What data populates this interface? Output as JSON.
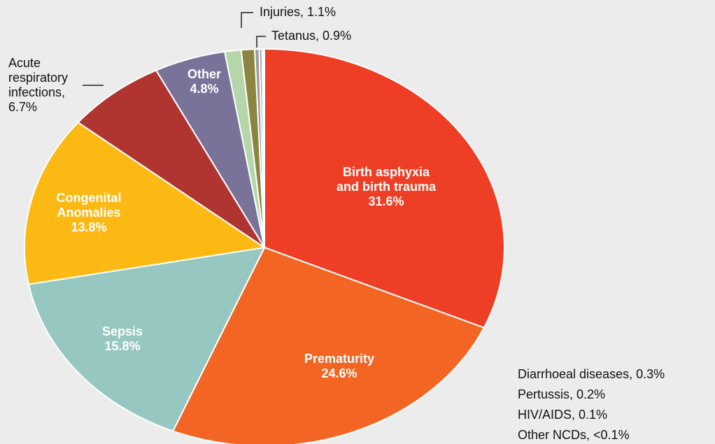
{
  "chart_data": {
    "type": "pie",
    "categories": [
      "Birth asphyxia\nand birth trauma",
      "Prematurity",
      "Sepsis",
      "Congenital\nAnomalies",
      "Acute\nrespiratory\ninfections,",
      "Other",
      "Injuries,",
      "Tetanus,",
      "Diarrhoeal diseases,",
      "Pertussis,",
      "HIV/AIDS,",
      "Other NCDs,"
    ],
    "values": [
      31.6,
      24.6,
      15.8,
      13.8,
      6.7,
      4.8,
      1.1,
      0.9,
      0.3,
      0.2,
      0.1,
      0.05
    ],
    "value_labels": [
      "31.6%",
      "24.6%",
      "15.8%",
      "13.8%",
      "6.7%",
      "4.8%",
      "1.1%",
      "0.9%",
      "0.3%",
      "0.2%",
      "0.1%",
      "<0.1%"
    ],
    "colors": [
      "#ee3e25",
      "#f26522",
      "#96c8c1",
      "#fdb913",
      "#b03530",
      "#7a7399",
      "#b5d6a8",
      "#8c8441",
      "#9a9a9a",
      "#aaaaaa",
      "#bbbbbb",
      "#cccccc"
    ]
  }
}
